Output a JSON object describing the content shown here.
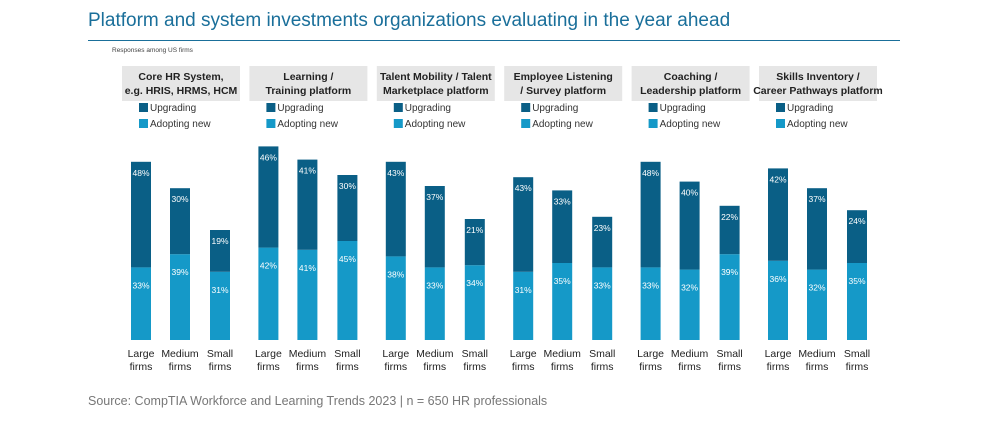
{
  "title": "Platform and system investments organizations evaluating in the year ahead",
  "subtitle": "Responses among US firms",
  "source": "Source: CompTIA Workforce and Learning Trends 2023 | n = 650 HR professionals",
  "colors": {
    "upgrading": "#0a5f86",
    "adopting_new": "#1599c8",
    "header_bg": "#e6e6e6",
    "title": "#1a6f9a"
  },
  "chart_data": [
    {
      "type": "bar",
      "title": "Core HR System, e.g. HRIS, HRMS, HCM",
      "categories": [
        "Large firms",
        "Medium firms",
        "Small firms"
      ],
      "series": [
        {
          "name": "Adopting new",
          "values": [
            33,
            39,
            31
          ]
        },
        {
          "name": "Upgrading",
          "values": [
            48,
            30,
            19
          ]
        }
      ],
      "stacked": true
    },
    {
      "type": "bar",
      "title": "Learning / Training platform",
      "categories": [
        "Large firms",
        "Medium firms",
        "Small firms"
      ],
      "series": [
        {
          "name": "Adopting new",
          "values": [
            42,
            41,
            45
          ]
        },
        {
          "name": "Upgrading",
          "values": [
            46,
            41,
            30
          ]
        }
      ],
      "stacked": true
    },
    {
      "type": "bar",
      "title": "Talent Mobility / Talent Marketplace platform",
      "categories": [
        "Large firms",
        "Medium firms",
        "Small firms"
      ],
      "series": [
        {
          "name": "Adopting new",
          "values": [
            38,
            33,
            34
          ]
        },
        {
          "name": "Upgrading",
          "values": [
            43,
            37,
            21
          ]
        }
      ],
      "stacked": true
    },
    {
      "type": "bar",
      "title": "Employee Listening / Survey platform",
      "categories": [
        "Large firms",
        "Medium firms",
        "Small firms"
      ],
      "series": [
        {
          "name": "Adopting new",
          "values": [
            31,
            35,
            33
          ]
        },
        {
          "name": "Upgrading",
          "values": [
            43,
            33,
            23
          ]
        }
      ],
      "stacked": true
    },
    {
      "type": "bar",
      "title": "Coaching / Leadership platform",
      "categories": [
        "Large firms",
        "Medium firms",
        "Small firms"
      ],
      "series": [
        {
          "name": "Adopting new",
          "values": [
            33,
            32,
            39
          ]
        },
        {
          "name": "Upgrading",
          "values": [
            48,
            40,
            22
          ]
        }
      ],
      "stacked": true
    },
    {
      "type": "bar",
      "title": "Skills Inventory / Career Pathways platform",
      "categories": [
        "Large firms",
        "Medium firms",
        "Small firms"
      ],
      "series": [
        {
          "name": "Adopting new",
          "values": [
            36,
            32,
            35
          ]
        },
        {
          "name": "Upgrading",
          "values": [
            42,
            37,
            24
          ]
        }
      ],
      "stacked": true
    }
  ],
  "legend": {
    "upgrading": "Upgrading",
    "adopting_new": "Adopting new"
  },
  "value_suffix": "%"
}
